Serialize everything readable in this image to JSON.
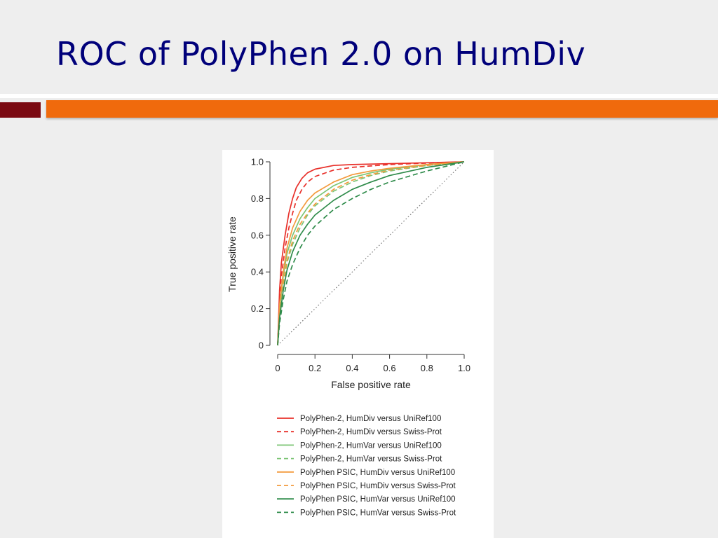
{
  "slide": {
    "title": "ROC of PolyPhen 2.0 on HumDiv"
  },
  "colors": {
    "title": "#00007a",
    "accent_left": "#7b0a12",
    "accent_right": "#f06a0c",
    "background": "#eeeeee"
  },
  "chart_data": {
    "type": "line",
    "xlabel": "False positive rate",
    "ylabel": "True positive rate",
    "xlim": [
      0,
      1
    ],
    "ylim": [
      0,
      1
    ],
    "xticks": [
      "0",
      "0.2",
      "0.4",
      "0.6",
      "0.8",
      "1.0"
    ],
    "yticks": [
      "0",
      "0.2",
      "0.4",
      "0.6",
      "0.8",
      "1.0"
    ],
    "grid": false,
    "legend_position": "below",
    "diagonal": {
      "style": "dotted",
      "color": "#777777",
      "points": [
        [
          0,
          0
        ],
        [
          1,
          1
        ]
      ]
    },
    "series": [
      {
        "name": "PolyPhen-2, HumDiv versus UniRef100",
        "color": "#e8302a",
        "dash": "solid",
        "points": [
          [
            0,
            0
          ],
          [
            0.01,
            0.3
          ],
          [
            0.02,
            0.45
          ],
          [
            0.04,
            0.6
          ],
          [
            0.06,
            0.72
          ],
          [
            0.08,
            0.8
          ],
          [
            0.1,
            0.86
          ],
          [
            0.13,
            0.91
          ],
          [
            0.16,
            0.94
          ],
          [
            0.2,
            0.96
          ],
          [
            0.3,
            0.98
          ],
          [
            0.4,
            0.985
          ],
          [
            0.6,
            0.99
          ],
          [
            0.8,
            0.995
          ],
          [
            1,
            1
          ]
        ]
      },
      {
        "name": "PolyPhen-2, HumDiv versus Swiss-Prot",
        "color": "#e8302a",
        "dash": "dashed",
        "points": [
          [
            0,
            0
          ],
          [
            0.01,
            0.26
          ],
          [
            0.02,
            0.38
          ],
          [
            0.04,
            0.53
          ],
          [
            0.06,
            0.64
          ],
          [
            0.08,
            0.72
          ],
          [
            0.1,
            0.79
          ],
          [
            0.13,
            0.85
          ],
          [
            0.16,
            0.89
          ],
          [
            0.2,
            0.92
          ],
          [
            0.3,
            0.955
          ],
          [
            0.4,
            0.97
          ],
          [
            0.6,
            0.985
          ],
          [
            0.8,
            0.993
          ],
          [
            1,
            1
          ]
        ]
      },
      {
        "name": "PolyPhen-2, HumVar versus UniRef100",
        "color": "#7cc576",
        "dash": "solid",
        "points": [
          [
            0,
            0
          ],
          [
            0.01,
            0.2
          ],
          [
            0.03,
            0.38
          ],
          [
            0.05,
            0.5
          ],
          [
            0.08,
            0.6
          ],
          [
            0.12,
            0.69
          ],
          [
            0.16,
            0.75
          ],
          [
            0.2,
            0.8
          ],
          [
            0.3,
            0.87
          ],
          [
            0.4,
            0.915
          ],
          [
            0.5,
            0.94
          ],
          [
            0.6,
            0.96
          ],
          [
            0.8,
            0.985
          ],
          [
            1,
            1
          ]
        ]
      },
      {
        "name": "PolyPhen-2, HumVar versus Swiss-Prot",
        "color": "#7cc576",
        "dash": "dashed",
        "points": [
          [
            0,
            0
          ],
          [
            0.01,
            0.17
          ],
          [
            0.03,
            0.33
          ],
          [
            0.05,
            0.45
          ],
          [
            0.08,
            0.55
          ],
          [
            0.12,
            0.64
          ],
          [
            0.16,
            0.71
          ],
          [
            0.2,
            0.76
          ],
          [
            0.3,
            0.84
          ],
          [
            0.4,
            0.89
          ],
          [
            0.5,
            0.925
          ],
          [
            0.6,
            0.95
          ],
          [
            0.8,
            0.98
          ],
          [
            1,
            1
          ]
        ]
      },
      {
        "name": "PolyPhen PSIC, HumDiv versus UniRef100",
        "color": "#f39a3c",
        "dash": "solid",
        "points": [
          [
            0,
            0
          ],
          [
            0.01,
            0.22
          ],
          [
            0.03,
            0.4
          ],
          [
            0.05,
            0.53
          ],
          [
            0.08,
            0.64
          ],
          [
            0.12,
            0.73
          ],
          [
            0.16,
            0.79
          ],
          [
            0.2,
            0.83
          ],
          [
            0.3,
            0.89
          ],
          [
            0.4,
            0.93
          ],
          [
            0.5,
            0.95
          ],
          [
            0.6,
            0.965
          ],
          [
            0.8,
            0.985
          ],
          [
            1,
            1
          ]
        ]
      },
      {
        "name": "PolyPhen PSIC, HumDiv versus Swiss-Prot",
        "color": "#f39a3c",
        "dash": "dashed",
        "points": [
          [
            0,
            0
          ],
          [
            0.01,
            0.18
          ],
          [
            0.03,
            0.34
          ],
          [
            0.05,
            0.46
          ],
          [
            0.08,
            0.57
          ],
          [
            0.12,
            0.66
          ],
          [
            0.16,
            0.72
          ],
          [
            0.2,
            0.77
          ],
          [
            0.3,
            0.85
          ],
          [
            0.4,
            0.9
          ],
          [
            0.5,
            0.93
          ],
          [
            0.6,
            0.955
          ],
          [
            0.8,
            0.98
          ],
          [
            1,
            1
          ]
        ]
      },
      {
        "name": "PolyPhen PSIC, HumVar versus UniRef100",
        "color": "#2e8b4a",
        "dash": "solid",
        "points": [
          [
            0,
            0
          ],
          [
            0.01,
            0.15
          ],
          [
            0.03,
            0.3
          ],
          [
            0.05,
            0.41
          ],
          [
            0.08,
            0.51
          ],
          [
            0.12,
            0.6
          ],
          [
            0.16,
            0.66
          ],
          [
            0.2,
            0.71
          ],
          [
            0.3,
            0.79
          ],
          [
            0.4,
            0.85
          ],
          [
            0.5,
            0.89
          ],
          [
            0.6,
            0.925
          ],
          [
            0.8,
            0.97
          ],
          [
            1,
            1
          ]
        ]
      },
      {
        "name": "PolyPhen PSIC, HumVar versus Swiss-Prot",
        "color": "#2e8b4a",
        "dash": "dashed",
        "points": [
          [
            0,
            0
          ],
          [
            0.01,
            0.12
          ],
          [
            0.03,
            0.25
          ],
          [
            0.05,
            0.35
          ],
          [
            0.08,
            0.44
          ],
          [
            0.12,
            0.53
          ],
          [
            0.16,
            0.6
          ],
          [
            0.2,
            0.65
          ],
          [
            0.3,
            0.74
          ],
          [
            0.4,
            0.8
          ],
          [
            0.5,
            0.85
          ],
          [
            0.6,
            0.89
          ],
          [
            0.8,
            0.95
          ],
          [
            1,
            1
          ]
        ]
      }
    ]
  }
}
